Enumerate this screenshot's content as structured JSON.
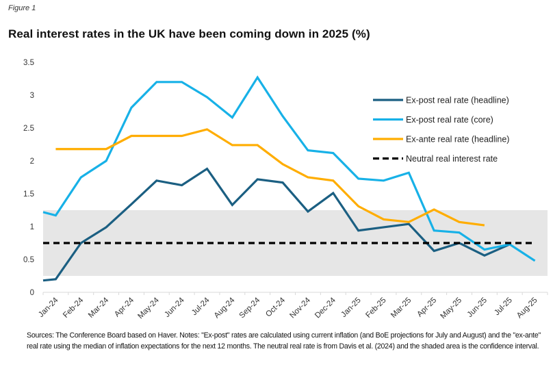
{
  "figure_label": "Figure 1",
  "title": "Real interest rates in the UK have been coming down in 2025 (%)",
  "note": "Sources: The Conference Board based on Haver. Notes: \"Ex-post\" rates are calculated using current inflation (and BoE projections for July and August) and the \"ex-ante\" real rate using the median of inflation expectations for the next 12 months. The neutral real rate is from Davis et al. (2024) and the shaded area is the confidence interval.",
  "chart_data": {
    "type": "line",
    "title": "Real interest rates in the UK have been coming down in 2025 (%)",
    "xlabel": "",
    "ylabel": "",
    "ylim": [
      0,
      3.5
    ],
    "yticks": [
      "0",
      "0.5",
      "1",
      "1.5",
      "2",
      "2.5",
      "3",
      "3.5"
    ],
    "grid": false,
    "legend_position": "top-right",
    "categories": [
      "Jan-24",
      "Feb-24",
      "Mar-24",
      "Apr-24",
      "May-24",
      "Jun-24",
      "Jul-24",
      "Aug-24",
      "Sep-24",
      "Oct-24",
      "Nov-24",
      "Dec-24",
      "Jan-25",
      "Feb-25",
      "Mar-25",
      "Apr-25",
      "May-25",
      "Jun-25",
      "Jul-25",
      "Aug-25"
    ],
    "series": [
      {
        "name": "Ex-post real rate (headline)",
        "color": "#1b5f82",
        "style": "solid",
        "left_edge_value": 0.18,
        "values": [
          0.2,
          0.75,
          0.99,
          1.34,
          1.7,
          1.63,
          1.88,
          1.33,
          1.72,
          1.67,
          1.23,
          1.51,
          0.94,
          0.99,
          1.04,
          0.63,
          0.75,
          0.56,
          0.73,
          null
        ]
      },
      {
        "name": "Ex-post real rate (core)",
        "color": "#17b1e7",
        "style": "solid",
        "left_edge_value": 1.22,
        "values": [
          1.17,
          1.75,
          2.0,
          2.81,
          3.2,
          3.2,
          2.97,
          2.66,
          3.27,
          2.68,
          2.16,
          2.12,
          1.73,
          1.7,
          1.82,
          0.94,
          0.91,
          0.65,
          0.73,
          0.48
        ]
      },
      {
        "name": "Ex-ante real rate (headline)",
        "color": "#ffad00",
        "style": "solid",
        "left_edge_value": null,
        "values": [
          2.18,
          2.18,
          2.18,
          2.38,
          2.38,
          2.38,
          2.48,
          2.24,
          2.24,
          1.95,
          1.75,
          1.7,
          1.31,
          1.11,
          1.07,
          1.26,
          1.07,
          1.02,
          null,
          null
        ]
      },
      {
        "name": "Neutral real interest rate",
        "color": "#000000",
        "style": "dashed",
        "value": 0.75
      }
    ],
    "shaded_band": {
      "label": "confidence interval",
      "lower": 0.25,
      "upper": 1.25,
      "color": "#e6e6e6"
    }
  }
}
